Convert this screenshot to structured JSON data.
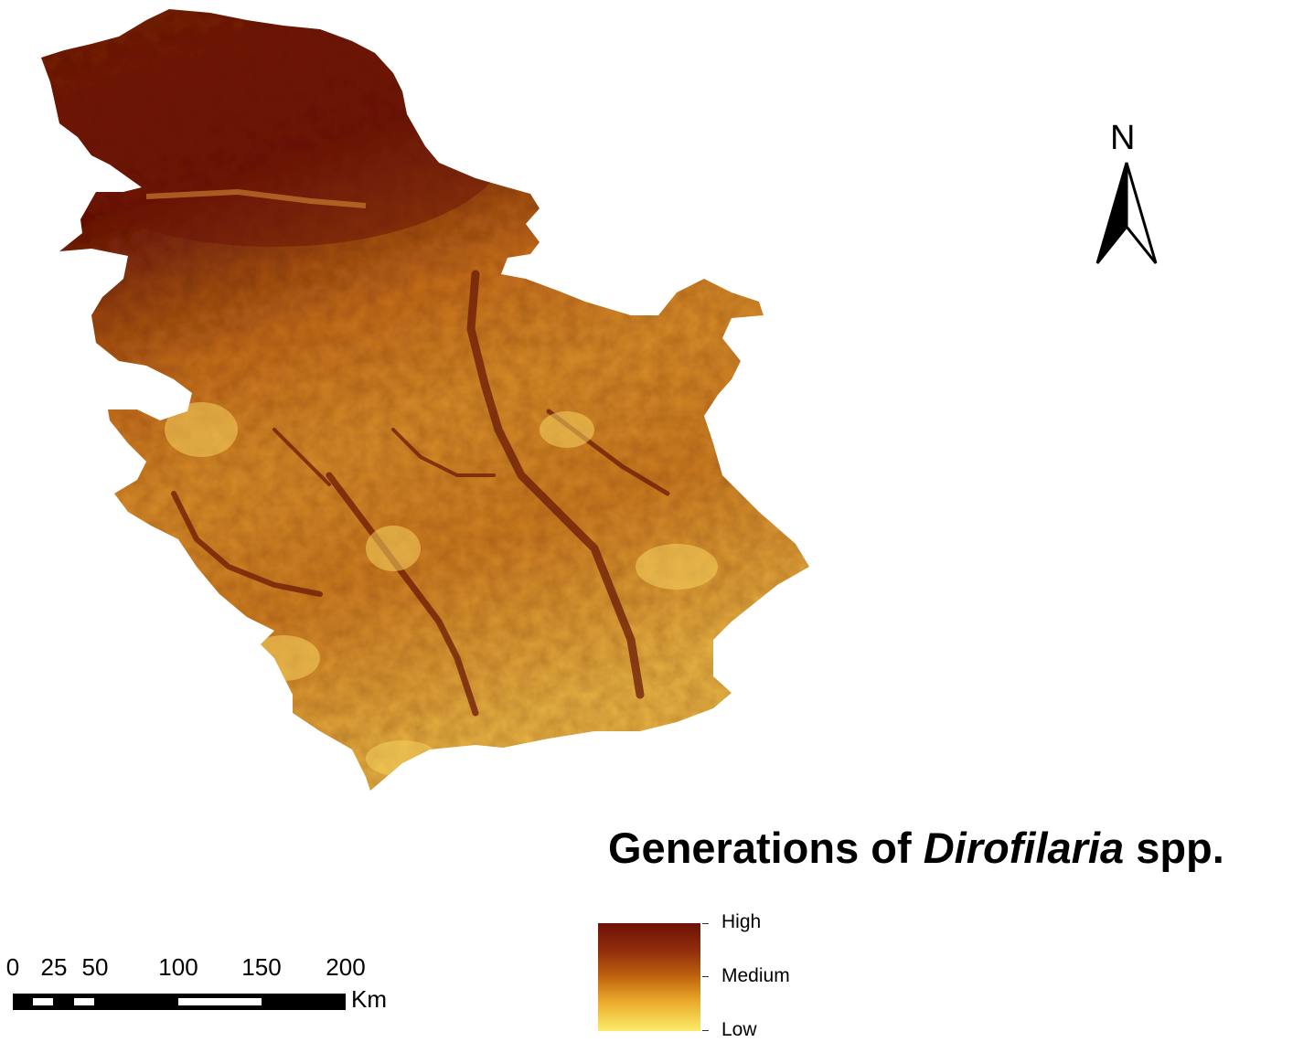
{
  "map": {
    "title_plain": "Generations of ",
    "title_italic": "Dirofilaria",
    "title_suffix": " spp.",
    "north_label": "N",
    "legend": {
      "labels": [
        "High",
        "Medium",
        "Low"
      ],
      "colors": [
        "#6e1208",
        "#c0650f",
        "#fcec6a"
      ]
    },
    "scale_bar": {
      "ticks": [
        "0",
        "25",
        "50",
        "100",
        "150",
        "200"
      ],
      "unit": "Km"
    }
  }
}
